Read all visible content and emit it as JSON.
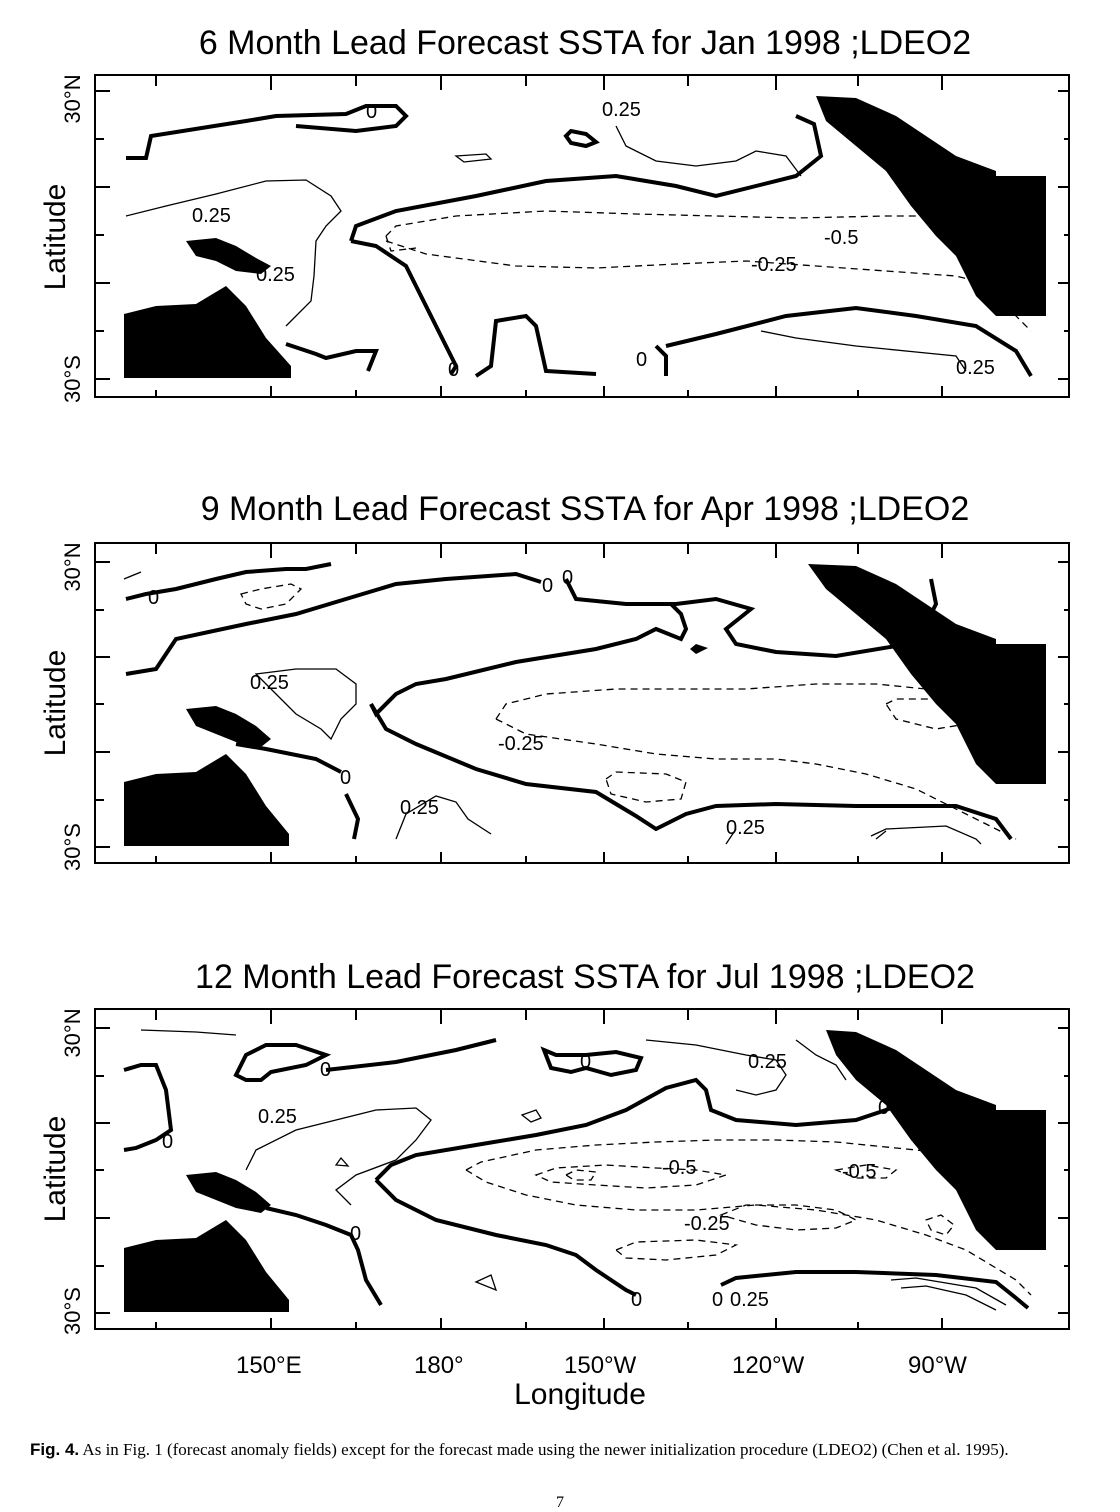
{
  "panels": [
    {
      "title": "6 Month Lead Forecast SSTA for Jan 1998 ;LDEO2",
      "ylabel": "Latitude",
      "lat_top": "30°N",
      "lat_bottom": "30°S",
      "contour_labels": [
        "0",
        "0.25",
        "0.25",
        "0.25",
        "-0.5",
        "-0.25",
        "0",
        "0",
        "0.25"
      ]
    },
    {
      "title": "9 Month Lead Forecast SSTA for Apr 1998 ;LDEO2",
      "ylabel": "Latitude",
      "lat_top": "30°N",
      "lat_bottom": "30°S",
      "contour_labels": [
        "0",
        "0",
        "0",
        "0.25",
        "-0.25",
        "0",
        "0.25",
        "0.25"
      ]
    },
    {
      "title": "12 Month Lead Forecast SSTA for Jul 1998 ;LDEO2",
      "ylabel": "Latitude",
      "lat_top": "30°N",
      "lat_bottom": "30°S",
      "contour_labels": [
        "0",
        "0",
        "0.25",
        "0.25",
        "0",
        "-0.5",
        "-0.5",
        "-0.25",
        "0",
        "0",
        "0",
        "0.25",
        "0"
      ]
    }
  ],
  "x_axis": {
    "ticks": [
      "150°E",
      "180°",
      "150°W",
      "120°W",
      "90°W"
    ],
    "label": "Longitude"
  },
  "caption": {
    "fig_label": "Fig. 4.",
    "text": " As in Fig. 1 (forecast anomaly fields) except for the forecast made using the newer initialization procedure (LDEO2) (Chen et al. 1995)."
  },
  "page_number": "7"
}
